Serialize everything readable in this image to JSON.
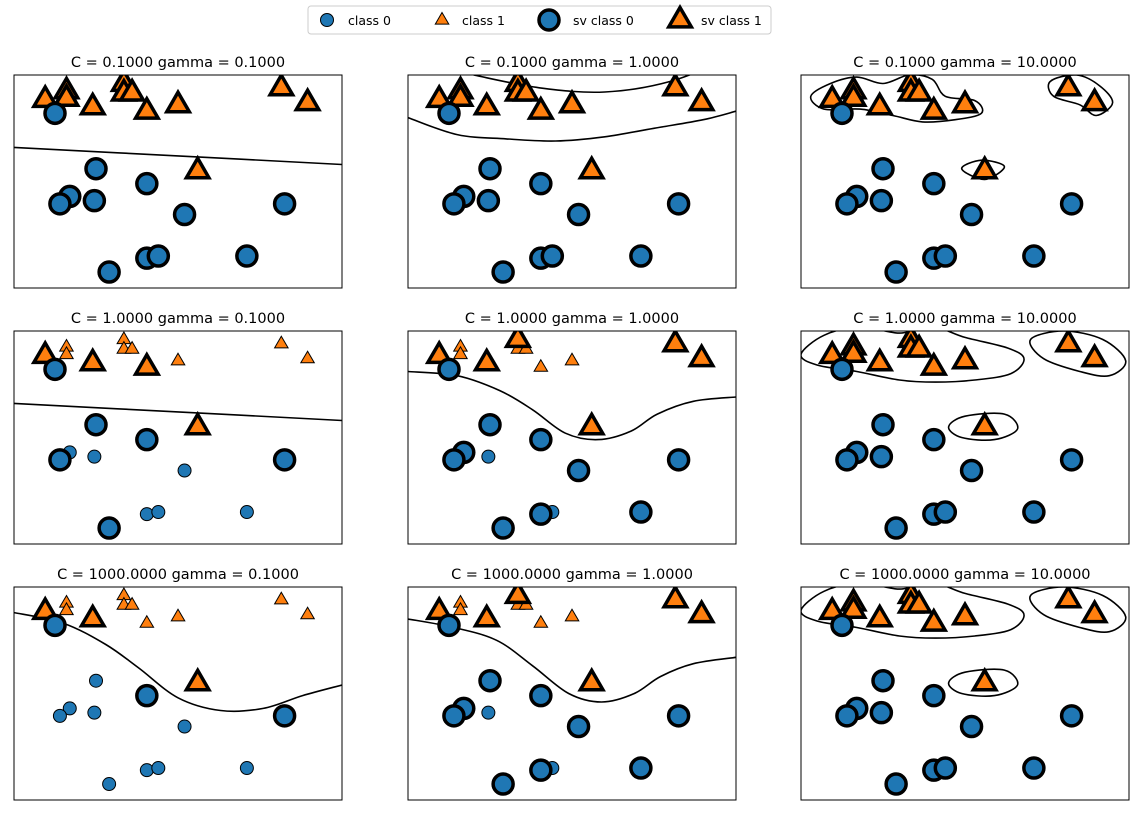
{
  "legend": [
    {
      "label": "class 0",
      "shape": "circle",
      "support_vector": false,
      "color": "#1f77b4"
    },
    {
      "label": "class 1",
      "shape": "triangle",
      "support_vector": false,
      "color": "#ff7f0e"
    },
    {
      "label": "sv class 0",
      "shape": "circle",
      "support_vector": true,
      "color": "#1f77b4"
    },
    {
      "label": "sv class 1",
      "shape": "triangle",
      "support_vector": true,
      "color": "#ff7f0e"
    }
  ],
  "colors": {
    "class0": "#1f77b4",
    "class1": "#ff7f0e",
    "edge": "#000000",
    "boundary": "#000000"
  },
  "chart_data": {
    "type": "scatter",
    "grid": false,
    "axis_ticks": false,
    "legend_position": "top-center",
    "xlim": [
      0,
      10
    ],
    "ylim": [
      0,
      10
    ],
    "points": [
      {
        "x": 0.95,
        "y": 8.85,
        "class": 1
      },
      {
        "x": 1.6,
        "y": 9.25,
        "class": 1
      },
      {
        "x": 1.6,
        "y": 8.9,
        "class": 1
      },
      {
        "x": 2.4,
        "y": 8.5,
        "class": 1
      },
      {
        "x": 3.35,
        "y": 9.6,
        "class": 1
      },
      {
        "x": 3.35,
        "y": 9.15,
        "class": 1
      },
      {
        "x": 3.6,
        "y": 9.15,
        "class": 1
      },
      {
        "x": 4.05,
        "y": 8.3,
        "class": 1
      },
      {
        "x": 5.0,
        "y": 8.6,
        "class": 1
      },
      {
        "x": 8.15,
        "y": 9.4,
        "class": 1
      },
      {
        "x": 8.95,
        "y": 8.7,
        "class": 1
      },
      {
        "x": 5.6,
        "y": 5.5,
        "class": 1
      },
      {
        "x": 1.25,
        "y": 8.2,
        "class": 0
      },
      {
        "x": 2.5,
        "y": 5.6,
        "class": 0
      },
      {
        "x": 4.05,
        "y": 4.9,
        "class": 0
      },
      {
        "x": 1.7,
        "y": 4.3,
        "class": 0
      },
      {
        "x": 1.4,
        "y": 3.95,
        "class": 0
      },
      {
        "x": 2.45,
        "y": 4.1,
        "class": 0
      },
      {
        "x": 5.2,
        "y": 3.45,
        "class": 0
      },
      {
        "x": 8.25,
        "y": 3.95,
        "class": 0
      },
      {
        "x": 2.9,
        "y": 0.75,
        "class": 0
      },
      {
        "x": 4.05,
        "y": 1.4,
        "class": 0
      },
      {
        "x": 4.4,
        "y": 1.5,
        "class": 0
      },
      {
        "x": 7.1,
        "y": 1.5,
        "class": 0
      }
    ],
    "subplots": [
      {
        "title": "C = 0.1000 gamma = 0.1000",
        "C": 0.1,
        "gamma": 0.1,
        "support_vectors": [
          0,
          1,
          2,
          3,
          4,
          5,
          6,
          7,
          8,
          9,
          10,
          11,
          12,
          13,
          14,
          15,
          16,
          17,
          18,
          19,
          20,
          21,
          22,
          23
        ],
        "boundaries": [
          {
            "closed": false,
            "points": [
              [
                0,
                6.6
              ],
              [
                5,
                6.2
              ],
              [
                10,
                5.8
              ]
            ]
          }
        ]
      },
      {
        "title": "C = 0.1000 gamma = 1.0000",
        "C": 0.1,
        "gamma": 1,
        "support_vectors": [
          0,
          1,
          2,
          3,
          4,
          5,
          6,
          7,
          8,
          9,
          10,
          11,
          12,
          13,
          14,
          15,
          16,
          17,
          18,
          19,
          20,
          21,
          22,
          23
        ],
        "boundaries": [
          {
            "closed": false,
            "points": [
              [
                0,
                8.0
              ],
              [
                1.5,
                7.2
              ],
              [
                3,
                7.0
              ],
              [
                4.5,
                6.9
              ],
              [
                6,
                7.1
              ],
              [
                7.5,
                7.5
              ],
              [
                9,
                7.9
              ],
              [
                10,
                8.3
              ]
            ]
          },
          {
            "closed": false,
            "points": [
              [
                2,
                10
              ],
              [
                4,
                9.4
              ],
              [
                6,
                9.2
              ],
              [
                8,
                9.7
              ],
              [
                10,
                10.9
              ]
            ]
          }
        ]
      },
      {
        "title": "C = 0.1000 gamma = 10.0000",
        "C": 0.1,
        "gamma": 10,
        "support_vectors": [
          0,
          1,
          2,
          3,
          4,
          5,
          6,
          7,
          8,
          9,
          10,
          11,
          12,
          13,
          14,
          15,
          16,
          17,
          18,
          19,
          20,
          21,
          22,
          23
        ],
        "boundaries": [
          {
            "closed": true,
            "points": [
              [
                0.3,
                9.0
              ],
              [
                0.9,
                9.6
              ],
              [
                1.7,
                9.9
              ],
              [
                2.5,
                9.6
              ],
              [
                3.3,
                10.0
              ],
              [
                4.0,
                9.8
              ],
              [
                4.4,
                9.0
              ],
              [
                5.3,
                8.8
              ],
              [
                5.5,
                8.2
              ],
              [
                4.7,
                7.9
              ],
              [
                3.7,
                7.8
              ],
              [
                2.8,
                8.1
              ],
              [
                1.8,
                8.4
              ],
              [
                0.7,
                8.4
              ]
            ]
          },
          {
            "closed": true,
            "points": [
              [
                7.6,
                9.7
              ],
              [
                8.4,
                10.0
              ],
              [
                9.1,
                9.5
              ],
              [
                9.5,
                8.7
              ],
              [
                9.0,
                8.1
              ],
              [
                8.5,
                8.6
              ],
              [
                7.7,
                9.0
              ]
            ]
          },
          {
            "closed": true,
            "points": [
              [
                4.9,
                5.6
              ],
              [
                5.5,
                6.0
              ],
              [
                6.2,
                5.7
              ],
              [
                5.6,
                5.1
              ]
            ]
          }
        ]
      },
      {
        "title": "C = 1.0000 gamma = 0.1000",
        "C": 1,
        "gamma": 0.1,
        "support_vectors": [
          0,
          3,
          7,
          11,
          12,
          13,
          14,
          16,
          19,
          20
        ],
        "boundaries": [
          {
            "closed": false,
            "points": [
              [
                0,
                6.6
              ],
              [
                5,
                6.2
              ],
              [
                10,
                5.8
              ]
            ]
          }
        ]
      },
      {
        "title": "C = 1.0000 gamma = 1.0000",
        "C": 1,
        "gamma": 1,
        "support_vectors": [
          0,
          3,
          4,
          9,
          10,
          11,
          12,
          13,
          14,
          15,
          16,
          18,
          19,
          20,
          21,
          23
        ],
        "boundaries": [
          {
            "closed": false,
            "points": [
              [
                0,
                8.1
              ],
              [
                1.5,
                7.9
              ],
              [
                2.8,
                7.2
              ],
              [
                3.8,
                6.3
              ],
              [
                4.8,
                5.2
              ],
              [
                5.8,
                4.9
              ],
              [
                6.8,
                5.3
              ],
              [
                7.6,
                6.1
              ],
              [
                8.7,
                6.7
              ],
              [
                10,
                6.9
              ]
            ]
          }
        ]
      },
      {
        "title": "C = 1.0000 gamma = 10.0000",
        "C": 1,
        "gamma": 10,
        "support_vectors": [
          0,
          1,
          2,
          3,
          4,
          5,
          6,
          7,
          8,
          9,
          10,
          11,
          12,
          13,
          14,
          15,
          16,
          17,
          18,
          19,
          20,
          21,
          22,
          23
        ],
        "boundaries": [
          {
            "closed": true,
            "points": [
              [
                0.0,
                8.9
              ],
              [
                0.7,
                9.8
              ],
              [
                1.8,
                10.2
              ],
              [
                3.0,
                9.9
              ],
              [
                4.0,
                10.2
              ],
              [
                5.0,
                9.7
              ],
              [
                6.3,
                9.2
              ],
              [
                6.8,
                8.7
              ],
              [
                6.4,
                8.0
              ],
              [
                5.3,
                7.7
              ],
              [
                4.1,
                7.6
              ],
              [
                3.0,
                7.7
              ],
              [
                1.7,
                8.1
              ],
              [
                0.5,
                8.4
              ]
            ]
          },
          {
            "closed": true,
            "points": [
              [
                7.0,
                9.6
              ],
              [
                8.0,
                10.0
              ],
              [
                9.2,
                9.6
              ],
              [
                9.9,
                8.6
              ],
              [
                9.4,
                7.9
              ],
              [
                8.5,
                8.1
              ],
              [
                7.4,
                8.7
              ]
            ]
          },
          {
            "closed": true,
            "points": [
              [
                4.5,
                5.5
              ],
              [
                5.0,
                6.0
              ],
              [
                6.2,
                6.1
              ],
              [
                6.6,
                5.4
              ],
              [
                5.9,
                4.9
              ],
              [
                4.9,
                5.0
              ]
            ]
          }
        ]
      },
      {
        "title": "C = 1000.0000 gamma = 0.1000",
        "C": 1000,
        "gamma": 0.1,
        "support_vectors": [
          0,
          3,
          11,
          12,
          14,
          19
        ],
        "boundaries": [
          {
            "closed": false,
            "points": [
              [
                0,
                8.8
              ],
              [
                1.5,
                8.3
              ],
              [
                2.8,
                7.3
              ],
              [
                3.8,
                6.2
              ],
              [
                5.0,
                4.8
              ],
              [
                6.3,
                4.2
              ],
              [
                7.6,
                4.3
              ],
              [
                8.8,
                4.9
              ],
              [
                10,
                5.4
              ]
            ]
          }
        ]
      },
      {
        "title": "C = 1000.0000 gamma = 1.0000",
        "C": 1000,
        "gamma": 1,
        "support_vectors": [
          0,
          3,
          4,
          9,
          10,
          11,
          12,
          13,
          14,
          15,
          16,
          18,
          19,
          20,
          21,
          23
        ],
        "boundaries": [
          {
            "closed": false,
            "points": [
              [
                0,
                8.5
              ],
              [
                1.4,
                8.1
              ],
              [
                2.7,
                7.5
              ],
              [
                3.8,
                6.3
              ],
              [
                4.9,
                5.0
              ],
              [
                5.9,
                4.6
              ],
              [
                6.9,
                5.0
              ],
              [
                7.7,
                5.8
              ],
              [
                8.7,
                6.4
              ],
              [
                10,
                6.7
              ]
            ]
          }
        ]
      },
      {
        "title": "C = 1000.0000 gamma = 10.0000",
        "C": 1000,
        "gamma": 10,
        "support_vectors": [
          0,
          1,
          2,
          3,
          4,
          5,
          6,
          7,
          8,
          9,
          10,
          11,
          12,
          13,
          14,
          15,
          16,
          17,
          18,
          19,
          20,
          21,
          22,
          23
        ],
        "boundaries": [
          {
            "closed": true,
            "points": [
              [
                0.0,
                8.9
              ],
              [
                0.7,
                9.8
              ],
              [
                1.8,
                10.2
              ],
              [
                3.0,
                9.9
              ],
              [
                4.0,
                10.2
              ],
              [
                5.0,
                9.7
              ],
              [
                6.3,
                9.2
              ],
              [
                6.8,
                8.7
              ],
              [
                6.4,
                8.0
              ],
              [
                5.3,
                7.7
              ],
              [
                4.1,
                7.6
              ],
              [
                3.0,
                7.7
              ],
              [
                1.7,
                8.1
              ],
              [
                0.5,
                8.4
              ]
            ]
          },
          {
            "closed": true,
            "points": [
              [
                7.0,
                9.6
              ],
              [
                8.0,
                10.0
              ],
              [
                9.2,
                9.6
              ],
              [
                9.9,
                8.6
              ],
              [
                9.4,
                7.9
              ],
              [
                8.5,
                8.1
              ],
              [
                7.4,
                8.7
              ]
            ]
          },
          {
            "closed": true,
            "points": [
              [
                4.5,
                5.5
              ],
              [
                5.0,
                6.0
              ],
              [
                6.2,
                6.1
              ],
              [
                6.6,
                5.4
              ],
              [
                5.9,
                4.9
              ],
              [
                4.9,
                5.0
              ]
            ]
          }
        ]
      }
    ]
  }
}
